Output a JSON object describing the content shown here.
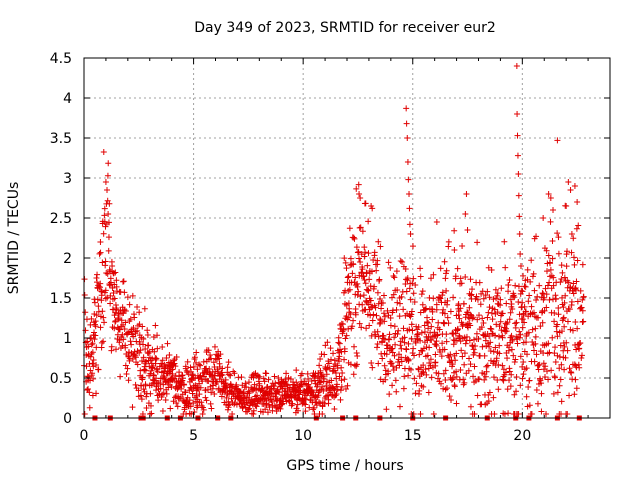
{
  "chart_data": {
    "type": "scatter",
    "title": "Day 349 of 2023, SRMTID for receiver eur2",
    "xlabel": "GPS time / hours",
    "ylabel": "SRMTID / TECUs",
    "xlim": [
      0,
      24
    ],
    "ylim": [
      0,
      4.5
    ],
    "x_ticks": [
      0,
      5,
      10,
      15,
      20
    ],
    "x_tick_labels": [
      "0",
      "5",
      "10",
      "15",
      "20"
    ],
    "y_ticks": [
      0,
      0.5,
      1,
      1.5,
      2,
      2.5,
      3,
      3.5,
      4,
      4.5
    ],
    "y_tick_labels": [
      "0",
      "0.5",
      "1",
      "1.5",
      "2",
      "2.5",
      "3",
      "3.5",
      "4",
      "4.5"
    ],
    "grid": true,
    "marker": "+",
    "color": "#e00000",
    "zero_markers_x": [
      0.5,
      1.2,
      2.6,
      2.7,
      3.8,
      4.4,
      5.2,
      6.1,
      6.7,
      10.6,
      11.8,
      12.4,
      13.5,
      15.0,
      16.5,
      18.4,
      19.7,
      20.3,
      21.6,
      22.6
    ],
    "profile": [
      [
        0.0,
        1.0,
        0.5
      ],
      [
        0.3,
        0.8,
        0.4
      ],
      [
        0.6,
        1.3,
        0.5
      ],
      [
        0.8,
        1.7,
        0.6
      ],
      [
        1.0,
        2.1,
        0.7
      ],
      [
        1.2,
        1.8,
        0.4
      ],
      [
        1.4,
        1.4,
        0.3
      ],
      [
        1.8,
        1.0,
        0.3
      ],
      [
        2.5,
        0.9,
        0.3
      ],
      [
        3.0,
        0.6,
        0.3
      ],
      [
        3.5,
        0.45,
        0.2
      ],
      [
        4.0,
        0.5,
        0.2
      ],
      [
        4.5,
        0.35,
        0.15
      ],
      [
        5.0,
        0.4,
        0.2
      ],
      [
        5.5,
        0.5,
        0.2
      ],
      [
        6.0,
        0.55,
        0.2
      ],
      [
        6.5,
        0.35,
        0.15
      ],
      [
        7.0,
        0.25,
        0.1
      ],
      [
        8.0,
        0.3,
        0.12
      ],
      [
        9.0,
        0.3,
        0.12
      ],
      [
        10.0,
        0.3,
        0.12
      ],
      [
        10.5,
        0.35,
        0.15
      ],
      [
        11.0,
        0.45,
        0.2
      ],
      [
        11.5,
        0.6,
        0.25
      ],
      [
        12.0,
        1.3,
        0.4
      ],
      [
        12.5,
        1.8,
        0.5
      ],
      [
        13.0,
        1.6,
        0.5
      ],
      [
        13.5,
        1.2,
        0.4
      ],
      [
        14.0,
        1.1,
        0.45
      ],
      [
        14.5,
        1.2,
        0.5
      ],
      [
        15.0,
        1.0,
        0.5
      ],
      [
        15.5,
        0.9,
        0.45
      ],
      [
        16.0,
        0.8,
        0.4
      ],
      [
        16.5,
        1.1,
        0.5
      ],
      [
        17.0,
        1.1,
        0.5
      ],
      [
        17.5,
        1.0,
        0.45
      ],
      [
        18.0,
        1.1,
        0.45
      ],
      [
        18.5,
        0.9,
        0.45
      ],
      [
        19.0,
        1.0,
        0.5
      ],
      [
        19.5,
        1.0,
        0.5
      ],
      [
        20.0,
        1.1,
        0.5
      ],
      [
        20.5,
        1.0,
        0.5
      ],
      [
        21.0,
        1.2,
        0.6
      ],
      [
        21.5,
        1.3,
        0.6
      ],
      [
        22.0,
        1.4,
        0.6
      ],
      [
        22.5,
        1.2,
        0.5
      ],
      [
        23.0,
        1.1,
        0.4
      ]
    ],
    "spikes": [
      [
        1.0,
        2.95
      ],
      [
        1.05,
        2.85
      ],
      [
        1.1,
        2.55
      ],
      [
        0.95,
        2.45
      ],
      [
        0.75,
        2.2
      ],
      [
        12.55,
        2.8
      ],
      [
        12.6,
        2.75
      ],
      [
        13.1,
        2.65
      ],
      [
        13.15,
        2.62
      ],
      [
        14.7,
        3.87
      ],
      [
        14.72,
        3.68
      ],
      [
        14.75,
        3.5
      ],
      [
        14.78,
        3.2
      ],
      [
        14.8,
        2.98
      ],
      [
        14.83,
        2.8
      ],
      [
        14.85,
        2.62
      ],
      [
        14.87,
        2.42
      ],
      [
        14.9,
        2.3
      ],
      [
        16.1,
        2.45
      ],
      [
        16.9,
        2.1
      ],
      [
        17.4,
        2.55
      ],
      [
        17.45,
        2.8
      ],
      [
        17.5,
        2.35
      ],
      [
        18.6,
        1.85
      ],
      [
        19.75,
        4.4
      ],
      [
        19.76,
        3.8
      ],
      [
        19.78,
        3.53
      ],
      [
        19.8,
        3.28
      ],
      [
        19.82,
        3.05
      ],
      [
        19.84,
        2.78
      ],
      [
        19.86,
        2.52
      ],
      [
        19.88,
        2.3
      ],
      [
        19.9,
        2.05
      ],
      [
        21.6,
        3.47
      ],
      [
        21.2,
        2.8
      ],
      [
        21.3,
        2.75
      ],
      [
        21.4,
        2.6
      ],
      [
        22.1,
        2.95
      ],
      [
        22.2,
        2.85
      ],
      [
        22.4,
        2.9
      ],
      [
        22.5,
        2.7
      ],
      [
        22.0,
        2.65
      ],
      [
        20.95,
        2.5
      ]
    ]
  }
}
